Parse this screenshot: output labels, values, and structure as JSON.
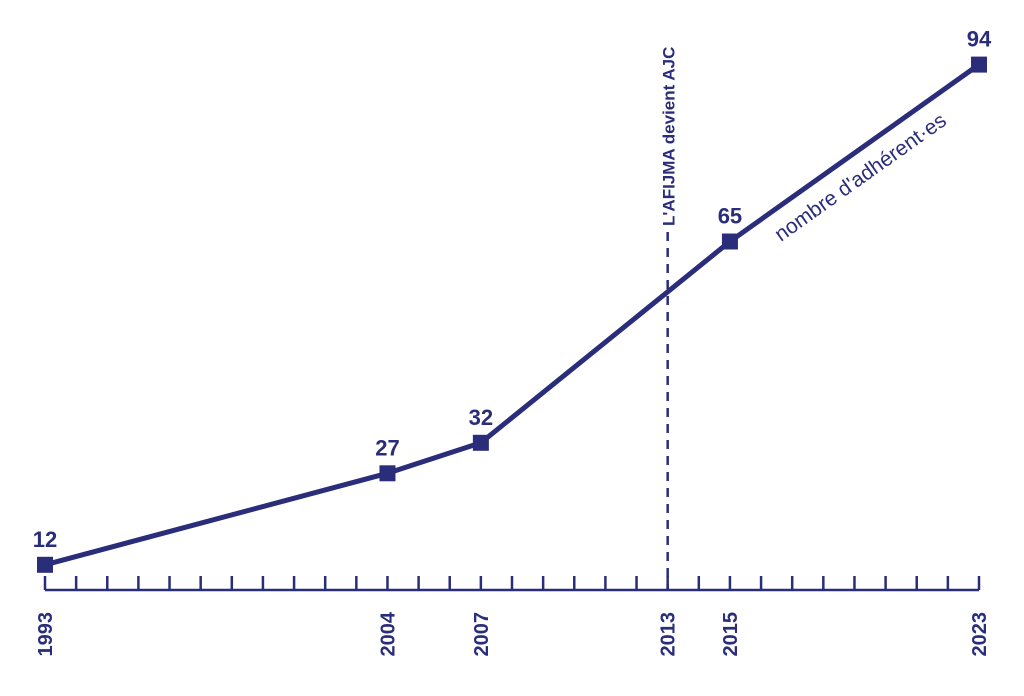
{
  "chart_data": {
    "type": "line",
    "x": [
      1993,
      2004,
      2007,
      2015,
      2023
    ],
    "series": [
      {
        "name": "nombre d'adhérent·es",
        "values": [
          12,
          27,
          32,
          65,
          94
        ]
      }
    ],
    "xlim": [
      1993,
      2023
    ],
    "ylim": [
      0,
      100
    ],
    "x_tick_labels": [
      "1993",
      "2004",
      "2007",
      "2013",
      "2015",
      "2023"
    ],
    "minor_ticks_every": 1,
    "annotations": [
      {
        "x": 2013,
        "text": "L'AFIJMA devient AJC",
        "style": "dashed-vertical"
      }
    ],
    "color": "#2a2d7a",
    "grid": false
  }
}
